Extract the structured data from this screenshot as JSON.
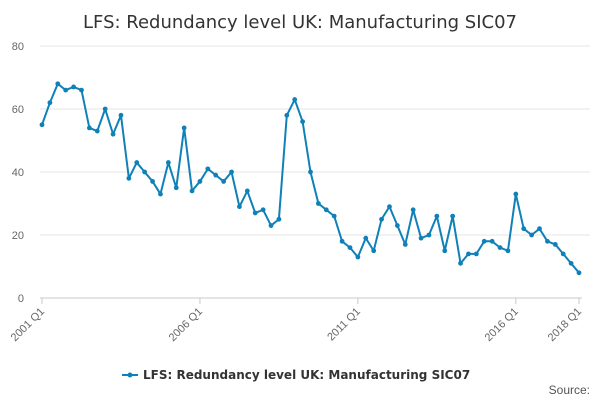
{
  "chart_data": {
    "type": "line",
    "title": "LFS: Redundancy level UK: Manufacturing SIC07",
    "xlabel": "",
    "ylabel": "",
    "ylim": [
      0,
      80
    ],
    "yticks": [
      0,
      20,
      40,
      60,
      80
    ],
    "xtick_labels": [
      "2001 Q1",
      "2006 Q1",
      "2011 Q1",
      "2016 Q1",
      "2018 Q1"
    ],
    "xtick_index": [
      0,
      20,
      40,
      60,
      68
    ],
    "grid": "horizontal",
    "legend_position": "bottom",
    "line_color": "#0f81b8",
    "categories": [
      "2001 Q1",
      "2001 Q2",
      "2001 Q3",
      "2001 Q4",
      "2002 Q1",
      "2002 Q2",
      "2002 Q3",
      "2002 Q4",
      "2003 Q1",
      "2003 Q2",
      "2003 Q3",
      "2003 Q4",
      "2004 Q1",
      "2004 Q2",
      "2004 Q3",
      "2004 Q4",
      "2005 Q1",
      "2005 Q2",
      "2005 Q3",
      "2005 Q4",
      "2006 Q1",
      "2006 Q2",
      "2006 Q3",
      "2006 Q4",
      "2007 Q1",
      "2007 Q2",
      "2007 Q3",
      "2007 Q4",
      "2008 Q1",
      "2008 Q2",
      "2008 Q3",
      "2008 Q4",
      "2009 Q1",
      "2009 Q2",
      "2009 Q3",
      "2009 Q4",
      "2010 Q1",
      "2010 Q2",
      "2010 Q3",
      "2010 Q4",
      "2011 Q1",
      "2011 Q2",
      "2011 Q3",
      "2011 Q4",
      "2012 Q1",
      "2012 Q2",
      "2012 Q3",
      "2012 Q4",
      "2013 Q1",
      "2013 Q2",
      "2013 Q3",
      "2013 Q4",
      "2014 Q1",
      "2014 Q2",
      "2014 Q3",
      "2014 Q4",
      "2015 Q1",
      "2015 Q2",
      "2015 Q3",
      "2015 Q4",
      "2016 Q1",
      "2016 Q2",
      "2016 Q3",
      "2016 Q4",
      "2017 Q1",
      "2017 Q2",
      "2017 Q3",
      "2017 Q4",
      "2018 Q1"
    ],
    "series": [
      {
        "name": "LFS: Redundancy level UK: Manufacturing SIC07",
        "values": [
          55,
          62,
          68,
          66,
          67,
          66,
          54,
          53,
          60,
          52,
          58,
          38,
          43,
          40,
          37,
          33,
          43,
          35,
          54,
          34,
          37,
          41,
          39,
          37,
          40,
          29,
          34,
          27,
          28,
          23,
          25,
          58,
          63,
          56,
          40,
          30,
          28,
          26,
          18,
          16,
          13,
          19,
          15,
          25,
          29,
          23,
          17,
          28,
          19,
          20,
          26,
          15,
          26,
          11,
          14,
          14,
          18,
          18,
          16,
          15,
          33,
          22,
          20,
          22,
          18,
          17,
          14,
          11,
          8
        ]
      }
    ]
  },
  "footer": {
    "source_label": "Source:"
  }
}
